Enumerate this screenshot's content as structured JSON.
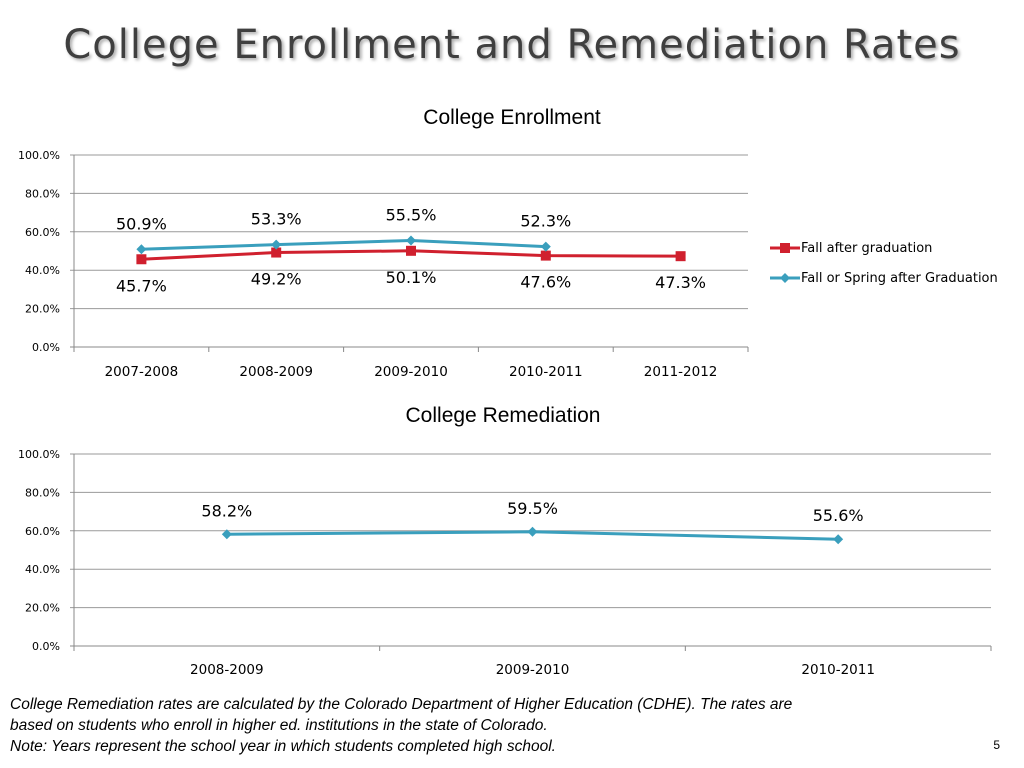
{
  "slide": {
    "title": "College Enrollment and Remediation Rates",
    "footnote_lines": [
      "College Remediation rates are calculated by the Colorado Department of Higher Education (CDHE). The rates are",
      "based on students who enroll in higher ed. institutions in the state of Colorado.",
      "Note: Years represent the school year in which students completed high school."
    ],
    "page_number": "5"
  },
  "chart_data": [
    {
      "type": "line",
      "title": "College Enrollment",
      "categories": [
        "2007-2008",
        "2008-2009",
        "2009-2010",
        "2010-2011",
        "2011-2012"
      ],
      "yticks": [
        "0.0%",
        "20.0%",
        "40.0%",
        "60.0%",
        "80.0%",
        "100.0%"
      ],
      "ylim": [
        0,
        100
      ],
      "grid": true,
      "legend": "right",
      "series": [
        {
          "name": "Fall after graduation",
          "values": [
            45.7,
            49.2,
            50.1,
            47.6,
            47.3
          ],
          "labels": [
            "45.7%",
            "49.2%",
            "50.1%",
            "47.6%",
            "47.3%"
          ],
          "color": "#d0202e",
          "marker": "square",
          "label_position": "below"
        },
        {
          "name": "Fall or Spring after Graduation",
          "values": [
            50.9,
            53.3,
            55.5,
            52.3,
            null
          ],
          "labels": [
            "50.9%",
            "53.3%",
            "55.5%",
            "52.3%",
            null
          ],
          "color": "#3a9fbd",
          "marker": "diamond",
          "label_position": "above"
        }
      ]
    },
    {
      "type": "line",
      "title": "College Remediation",
      "categories": [
        "2008-2009",
        "2009-2010",
        "2010-2011"
      ],
      "yticks": [
        "0.0%",
        "20.0%",
        "40.0%",
        "60.0%",
        "80.0%",
        "100.0%"
      ],
      "ylim": [
        0,
        100
      ],
      "grid": true,
      "legend": "none",
      "series": [
        {
          "values": [
            58.2,
            59.5,
            55.6
          ],
          "labels": [
            "58.2%",
            "59.5%",
            "55.6%"
          ],
          "color": "#3a9fbd",
          "marker": "diamond",
          "label_position": "above"
        }
      ]
    }
  ]
}
